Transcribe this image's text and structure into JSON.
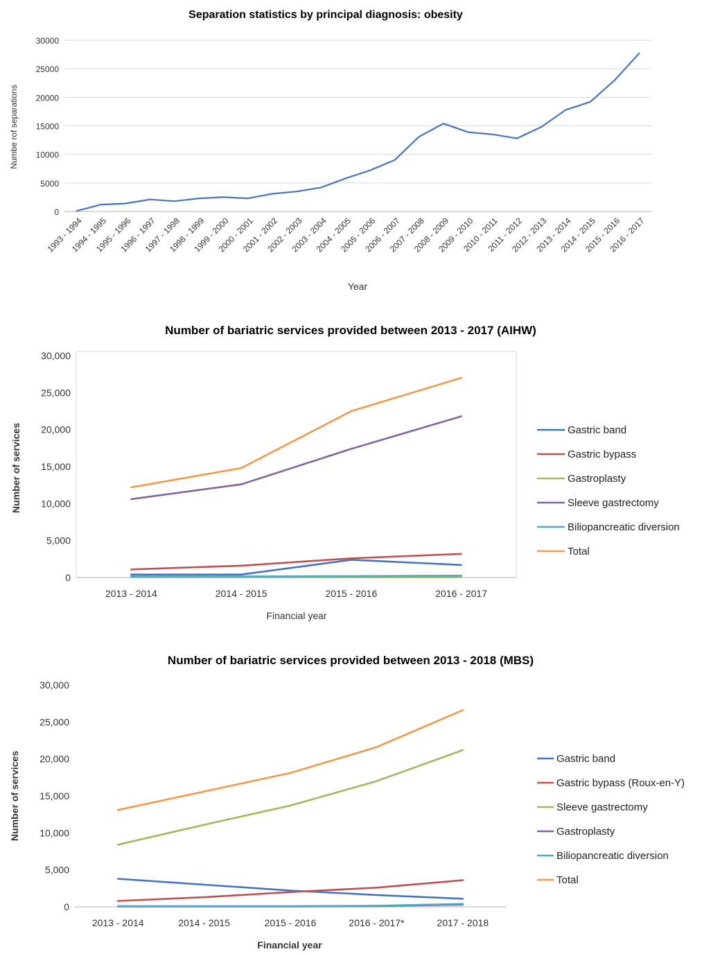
{
  "chart_data": [
    {
      "type": "line",
      "title": "Separation statistics by principal diagnosis: obesity",
      "xlabel": "Year",
      "ylabel": "Numbe rof separations",
      "ylim": [
        0,
        30000
      ],
      "yticks": [
        "0",
        "5000",
        "10000",
        "15000",
        "20000",
        "25000",
        "30000"
      ],
      "grid": true,
      "legend": "none",
      "categories": [
        "1993 - 1994",
        "1994 - 1995",
        "1995 - 1996",
        "1996 - 1997",
        "1997 - 1998",
        "1998 - 1999",
        "1999 - 2000",
        "2000 - 2001",
        "2001 - 2002",
        "2002 - 2003",
        "2003 - 2004",
        "2004 - 2005",
        "2005 - 2006",
        "2006 - 2007",
        "2007 - 2008",
        "2008 - 2009",
        "2009 - 2010",
        "2010 - 2011",
        "2011 - 2012",
        "2012 - 2013",
        "2013 - 2014",
        "2014 - 2015",
        "2015 - 2016",
        "2016 - 2017"
      ],
      "series": [
        {
          "color": "#4472C4",
          "values": [
            100,
            1200,
            1400,
            2100,
            1800,
            2300,
            2500,
            2300,
            3100,
            3500,
            4200,
            5800,
            7200,
            9000,
            13100,
            15400,
            13900,
            13500,
            12800,
            14800,
            17800,
            19200,
            23000,
            27700
          ]
        }
      ]
    },
    {
      "type": "line",
      "title": "Number of bariatric services provided between 2013 - 2017 (AIHW)",
      "xlabel": "Financial year",
      "ylabel": "Number of services",
      "ylim": [
        0,
        30000
      ],
      "yticks": [
        "0",
        "5,000",
        "10,000",
        "15,000",
        "20,000",
        "25,000",
        "30,000"
      ],
      "grid": false,
      "legend": "right",
      "categories": [
        "2013 - 2014",
        "2014 - 2015",
        "2015 - 2016",
        "2016 - 2017"
      ],
      "series": [
        {
          "name": "Gastric band",
          "color": "#4472C4",
          "values": [
            400,
            400,
            2400,
            1700
          ]
        },
        {
          "name": "Gastric bypass",
          "color": "#C0504D",
          "values": [
            1100,
            1600,
            2600,
            3200
          ]
        },
        {
          "name": "Gastroplasty",
          "color": "#9BBB59",
          "values": [
            50,
            50,
            50,
            50
          ]
        },
        {
          "name": "Sleeve gastrectomy",
          "color": "#8064A2",
          "values": [
            10600,
            12600,
            17400,
            21800
          ]
        },
        {
          "name": "Biliopancreatic diversion",
          "color": "#4BACC6",
          "values": [
            150,
            150,
            200,
            250
          ]
        },
        {
          "name": "Total",
          "color": "#F79646",
          "values": [
            12200,
            14800,
            22500,
            27000
          ]
        }
      ]
    },
    {
      "type": "line",
      "title": "Number of bariatric services provided between 2013 - 2018 (MBS)",
      "xlabel": "Financial year",
      "ylabel": "Number of services",
      "ylim": [
        0,
        30000
      ],
      "yticks": [
        "0",
        "5,000",
        "10,000",
        "15,000",
        "20,000",
        "25,000",
        "30,000"
      ],
      "grid": false,
      "legend": "right",
      "categories": [
        "2013 - 2014",
        "2014 - 2015",
        "2015 - 2016",
        "2016 - 2017*",
        "2017 - 2018"
      ],
      "series": [
        {
          "name": "Gastric band",
          "color": "#4472C4",
          "values": [
            3800,
            3000,
            2200,
            1600,
            1100
          ]
        },
        {
          "name": "Gastric bypass (Roux-en-Y)",
          "color": "#C0504D",
          "values": [
            800,
            1300,
            2000,
            2600,
            3600
          ]
        },
        {
          "name": "Sleeve gastrectomy",
          "color": "#9BBB59",
          "values": [
            8400,
            11100,
            13700,
            17000,
            21200
          ]
        },
        {
          "name": "Gastroplasty",
          "color": "#8064A2",
          "values": [
            50,
            50,
            50,
            100,
            300
          ]
        },
        {
          "name": "Biliopancreatic diversion",
          "color": "#4BACC6",
          "values": [
            100,
            100,
            100,
            150,
            400
          ]
        },
        {
          "name": "Total",
          "color": "#F79646",
          "values": [
            13100,
            15600,
            18100,
            21600,
            26600
          ]
        }
      ]
    }
  ]
}
